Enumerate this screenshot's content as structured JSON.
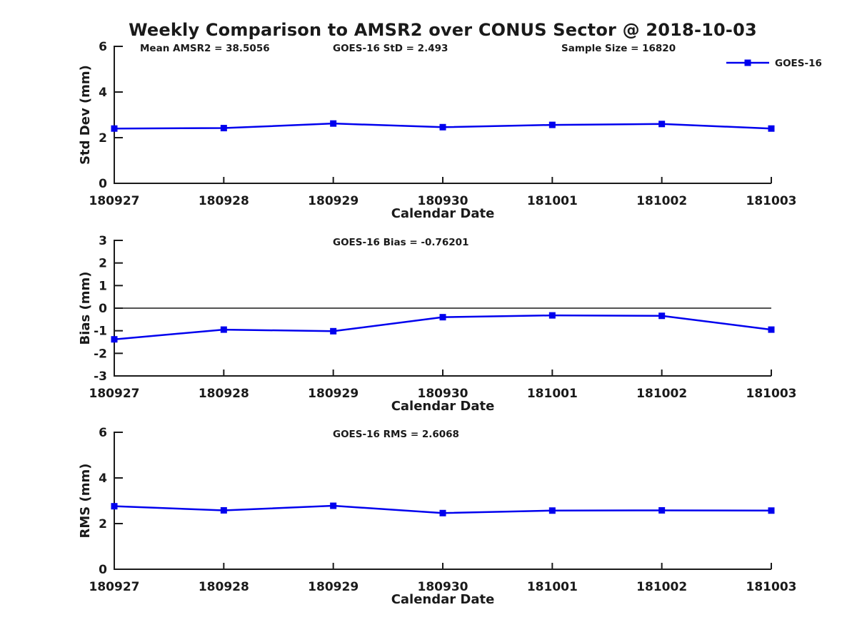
{
  "title": "Weekly Comparison to AMSR2 over CONUS Sector @ 2018-10-03",
  "legend": {
    "label": "GOES-16",
    "color": "#0000EE",
    "position": "top-right"
  },
  "colors": {
    "line": "#0000EE",
    "axis": "#1a1a1a",
    "text": "#1a1a1a",
    "background": "#ffffff"
  },
  "chart_data": [
    {
      "type": "line",
      "ylabel": "Std Dev (mm)",
      "xlabel": "Calendar Date",
      "categories": [
        "180927",
        "180928",
        "180929",
        "180930",
        "181001",
        "181002",
        "181003"
      ],
      "series": [
        {
          "name": "GOES-16",
          "color": "#0000EE",
          "marker": "square",
          "values": [
            2.4,
            2.42,
            2.62,
            2.46,
            2.56,
            2.6,
            2.4
          ]
        }
      ],
      "ylim": [
        0,
        6
      ],
      "yticks": [
        0,
        2,
        4,
        6
      ],
      "zero_line": false,
      "grid": false,
      "annotations": [
        "Mean AMSR2 = 38.5056",
        "GOES-16 StD = 2.493",
        "Sample Size = 16820"
      ]
    },
    {
      "type": "line",
      "ylabel": "Bias (mm)",
      "xlabel": "Calendar Date",
      "categories": [
        "180927",
        "180928",
        "180929",
        "180930",
        "181001",
        "181002",
        "181003"
      ],
      "series": [
        {
          "name": "GOES-16",
          "color": "#0000EE",
          "marker": "square",
          "values": [
            -1.38,
            -0.95,
            -1.02,
            -0.4,
            -0.32,
            -0.34,
            -0.95
          ]
        }
      ],
      "ylim": [
        -3,
        3
      ],
      "yticks": [
        -3,
        -2,
        -1,
        0,
        1,
        2,
        3
      ],
      "zero_line": true,
      "grid": false,
      "annotations": [
        "GOES-16 Bias  = -0.76201"
      ]
    },
    {
      "type": "line",
      "ylabel": "RMS (mm)",
      "xlabel": "Calendar Date",
      "categories": [
        "180927",
        "180928",
        "180929",
        "180930",
        "181001",
        "181002",
        "181003"
      ],
      "series": [
        {
          "name": "GOES-16",
          "color": "#0000EE",
          "marker": "square",
          "values": [
            2.76,
            2.58,
            2.78,
            2.46,
            2.57,
            2.58,
            2.57
          ]
        }
      ],
      "ylim": [
        0,
        6
      ],
      "yticks": [
        0,
        2,
        4,
        6
      ],
      "zero_line": false,
      "grid": false,
      "annotations": [
        "GOES-16 RMS = 2.6068"
      ]
    }
  ]
}
